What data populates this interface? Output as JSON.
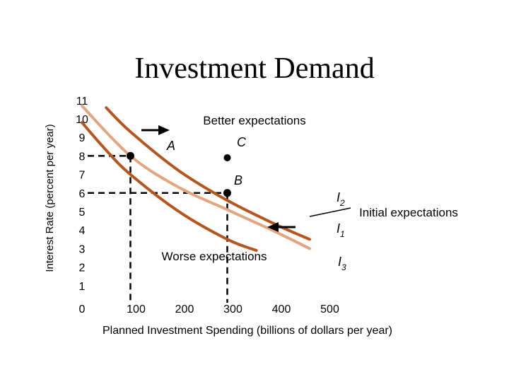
{
  "chart_data": {
    "type": "line",
    "title": "Investment Demand",
    "xlabel": "Planned Investment Spending (billions of dollars per year)",
    "ylabel": "Interest Rate (percent per year)",
    "xlim": [
      0,
      500
    ],
    "ylim": [
      0,
      11
    ],
    "x_ticks": [
      "0",
      "100",
      "200",
      "300",
      "400",
      "500"
    ],
    "y_ticks": [
      "1",
      "2",
      "3",
      "4",
      "5",
      "6",
      "7",
      "8",
      "9",
      "10",
      "11"
    ],
    "series": [
      {
        "name": "I2",
        "label_sub": "2",
        "color": "#b5561f",
        "points": [
          [
            50,
            10.6
          ],
          [
            100,
            9.3
          ],
          [
            200,
            7.2
          ],
          [
            300,
            5.6
          ],
          [
            400,
            4.3
          ],
          [
            470,
            3.5
          ]
        ]
      },
      {
        "name": "I1",
        "label_sub": "1",
        "color": "#e3a57f",
        "points": [
          [
            0,
            10.7
          ],
          [
            100,
            8.0
          ],
          [
            200,
            6.3
          ],
          [
            300,
            5.1
          ],
          [
            400,
            3.9
          ],
          [
            470,
            3.0
          ]
        ]
      },
      {
        "name": "I3",
        "label_sub": "3",
        "color": "#b5561f",
        "points": [
          [
            0,
            9.8
          ],
          [
            50,
            8.3
          ],
          [
            100,
            7.0
          ],
          [
            200,
            5.0
          ],
          [
            300,
            3.5
          ],
          [
            360,
            2.9
          ]
        ]
      }
    ],
    "points": [
      {
        "label": "A",
        "x": 100,
        "y": 8
      },
      {
        "label": "B",
        "x": 300,
        "y": 6
      },
      {
        "label": "C",
        "x": 300,
        "y": 7.9
      }
    ],
    "annotations": {
      "better": "Better expectations",
      "initial": "Initial expectations",
      "worse": "Worse expectations",
      "curve_prefix": "I"
    },
    "grid": false,
    "legend": "none"
  }
}
